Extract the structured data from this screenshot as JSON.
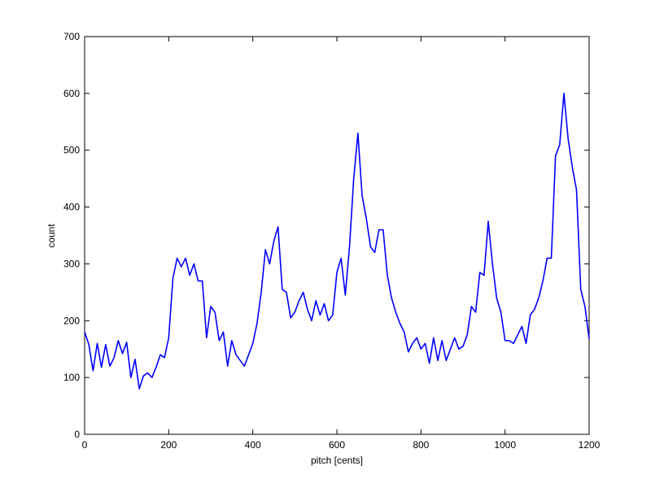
{
  "chart_data": {
    "type": "line",
    "x_label": "pitch [cents]",
    "y_label": "count",
    "x": [
      0,
      10,
      20,
      30,
      40,
      50,
      60,
      70,
      80,
      90,
      100,
      110,
      120,
      130,
      140,
      150,
      160,
      170,
      180,
      190,
      200,
      210,
      220,
      230,
      240,
      250,
      260,
      270,
      280,
      290,
      300,
      310,
      320,
      330,
      340,
      350,
      360,
      370,
      380,
      390,
      400,
      410,
      420,
      430,
      440,
      450,
      460,
      470,
      480,
      490,
      500,
      510,
      520,
      530,
      540,
      550,
      560,
      570,
      580,
      590,
      600,
      610,
      620,
      630,
      640,
      650,
      660,
      670,
      680,
      690,
      700,
      710,
      720,
      730,
      740,
      750,
      760,
      770,
      780,
      790,
      800,
      810,
      820,
      830,
      840,
      850,
      860,
      870,
      880,
      890,
      900,
      910,
      920,
      930,
      940,
      950,
      960,
      970,
      980,
      990,
      1000,
      1010,
      1020,
      1030,
      1040,
      1050,
      1060,
      1070,
      1080,
      1090,
      1100,
      1110,
      1120,
      1130,
      1140,
      1150,
      1160,
      1170,
      1180,
      1190,
      1200
    ],
    "values": [
      180,
      158,
      112,
      160,
      118,
      158,
      120,
      135,
      165,
      142,
      162,
      100,
      132,
      80,
      103,
      108,
      100,
      118,
      140,
      135,
      170,
      275,
      310,
      295,
      310,
      280,
      300,
      270,
      270,
      170,
      225,
      215,
      165,
      180,
      120,
      165,
      140,
      130,
      120,
      140,
      160,
      195,
      250,
      325,
      300,
      340,
      365,
      255,
      250,
      205,
      215,
      235,
      250,
      220,
      200,
      235,
      210,
      230,
      200,
      210,
      285,
      310,
      245,
      330,
      450,
      530,
      420,
      380,
      330,
      320,
      360,
      360,
      280,
      240,
      215,
      195,
      180,
      145,
      160,
      170,
      150,
      160,
      125,
      170,
      130,
      165,
      130,
      150,
      170,
      150,
      155,
      175,
      225,
      215,
      285,
      280,
      375,
      300,
      240,
      215,
      165,
      165,
      160,
      175,
      190,
      160,
      210,
      220,
      240,
      270,
      310,
      310,
      490,
      510,
      600,
      520,
      470,
      430,
      255,
      225,
      168
    ],
    "color": "#0000ff",
    "xlim": [
      0,
      1200
    ],
    "xticks": [
      0,
      200,
      400,
      600,
      800,
      1000,
      1200
    ],
    "ylim": [
      0,
      700
    ],
    "yticks": [
      0,
      100,
      200,
      300,
      400,
      500,
      600,
      700
    ],
    "grid": false
  }
}
